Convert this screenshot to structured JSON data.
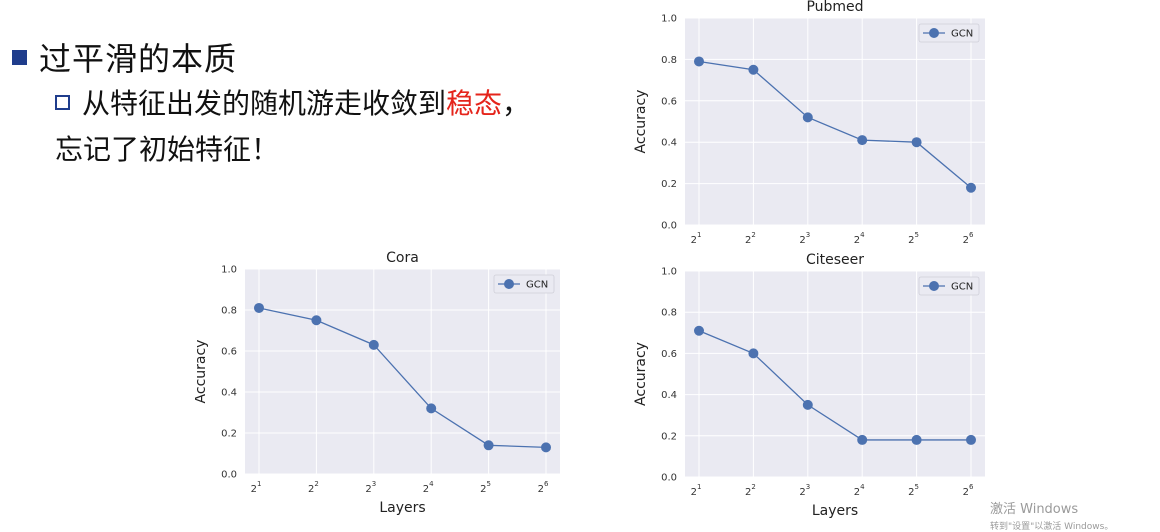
{
  "slide": {
    "bullet_main": "过平滑的本质",
    "sub_text_before": "从特征出发的随机游走收敛到",
    "sub_text_highlight": "稳态",
    "sub_text_after": "，",
    "sub_text_line2": "忘记了初始特征！"
  },
  "watermark": {
    "line1": "激活 Windows",
    "line2": "转到\"设置\"以激活 Windows。"
  },
  "chart_data": [
    {
      "type": "line",
      "title": "Pubmed",
      "xlabel": "",
      "ylabel": "Accuracy",
      "x_ticks": [
        {
          "base": "2",
          "exp": "1"
        },
        {
          "base": "2",
          "exp": "2"
        },
        {
          "base": "2",
          "exp": "3"
        },
        {
          "base": "2",
          "exp": "4"
        },
        {
          "base": "2",
          "exp": "5"
        },
        {
          "base": "2",
          "exp": "6"
        }
      ],
      "y_ticks": [
        "0.0",
        "0.2",
        "0.4",
        "0.6",
        "0.8",
        "1.0"
      ],
      "ylim": [
        0,
        1
      ],
      "series": [
        {
          "name": "GCN",
          "values": [
            0.79,
            0.75,
            0.52,
            0.41,
            0.4,
            0.18
          ]
        }
      ],
      "legend": "top-right",
      "grid": true,
      "colors": {
        "series": "#4c72b0",
        "background": "#eaeaf2"
      }
    },
    {
      "type": "line",
      "title": "Cora",
      "xlabel": "Layers",
      "ylabel": "Accuracy",
      "x_ticks": [
        {
          "base": "2",
          "exp": "1"
        },
        {
          "base": "2",
          "exp": "2"
        },
        {
          "base": "2",
          "exp": "3"
        },
        {
          "base": "2",
          "exp": "4"
        },
        {
          "base": "2",
          "exp": "5"
        },
        {
          "base": "2",
          "exp": "6"
        }
      ],
      "y_ticks": [
        "0.0",
        "0.2",
        "0.4",
        "0.6",
        "0.8",
        "1.0"
      ],
      "ylim": [
        0,
        1
      ],
      "series": [
        {
          "name": "GCN",
          "values": [
            0.81,
            0.75,
            0.63,
            0.32,
            0.14,
            0.13
          ]
        }
      ],
      "legend": "top-right",
      "grid": true,
      "colors": {
        "series": "#4c72b0",
        "background": "#eaeaf2"
      }
    },
    {
      "type": "line",
      "title": "Citeseer",
      "xlabel": "Layers",
      "ylabel": "Accuracy",
      "x_ticks": [
        {
          "base": "2",
          "exp": "1"
        },
        {
          "base": "2",
          "exp": "2"
        },
        {
          "base": "2",
          "exp": "3"
        },
        {
          "base": "2",
          "exp": "4"
        },
        {
          "base": "2",
          "exp": "5"
        },
        {
          "base": "2",
          "exp": "6"
        }
      ],
      "y_ticks": [
        "0.0",
        "0.2",
        "0.4",
        "0.6",
        "0.8",
        "1.0"
      ],
      "ylim": [
        0,
        1
      ],
      "series": [
        {
          "name": "GCN",
          "values": [
            0.71,
            0.6,
            0.35,
            0.18,
            0.18,
            0.18
          ]
        }
      ],
      "legend": "top-right",
      "grid": true,
      "colors": {
        "series": "#4c72b0",
        "background": "#eaeaf2"
      }
    }
  ]
}
